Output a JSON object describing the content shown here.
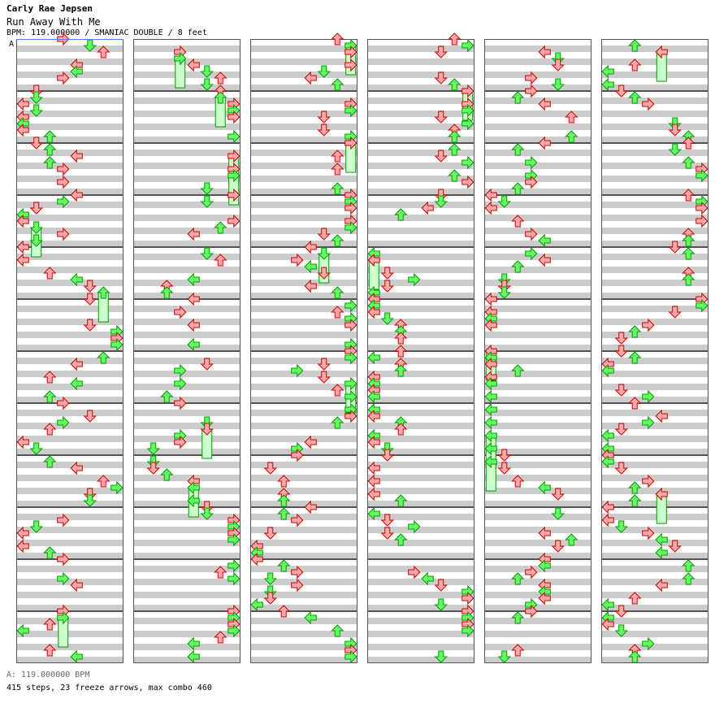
{
  "header": {
    "artist": "Carly Rae Jepsen",
    "title": "Run Away With Me",
    "info": "BPM: 119.000000 / SMANIAC DOUBLE / 8 feet"
  },
  "bpm_marker": {
    "label": "A"
  },
  "footer": {
    "bpm_line": "A: 119.000000 BPM",
    "stats": "415 steps, 23 freeze arrows, max combo 460"
  },
  "colors": {
    "stripe": "#cccccc",
    "measure_border": "#555555",
    "quarter_arrow": "#ffaaaa",
    "quarter_stroke": "#cc0000",
    "eighth_arrow": "#66ff66",
    "eighth_stroke": "#009900",
    "freeze_fill": "#ccffcc",
    "freeze_stroke": "#009900",
    "bpm_line": "#5577ff"
  },
  "chart": {
    "columns": 6,
    "measures_per_column": 12,
    "lanes": 8,
    "lane_arrows": [
      "left",
      "down",
      "up",
      "right",
      "left",
      "down",
      "up",
      "right"
    ],
    "seed": 1190
  }
}
